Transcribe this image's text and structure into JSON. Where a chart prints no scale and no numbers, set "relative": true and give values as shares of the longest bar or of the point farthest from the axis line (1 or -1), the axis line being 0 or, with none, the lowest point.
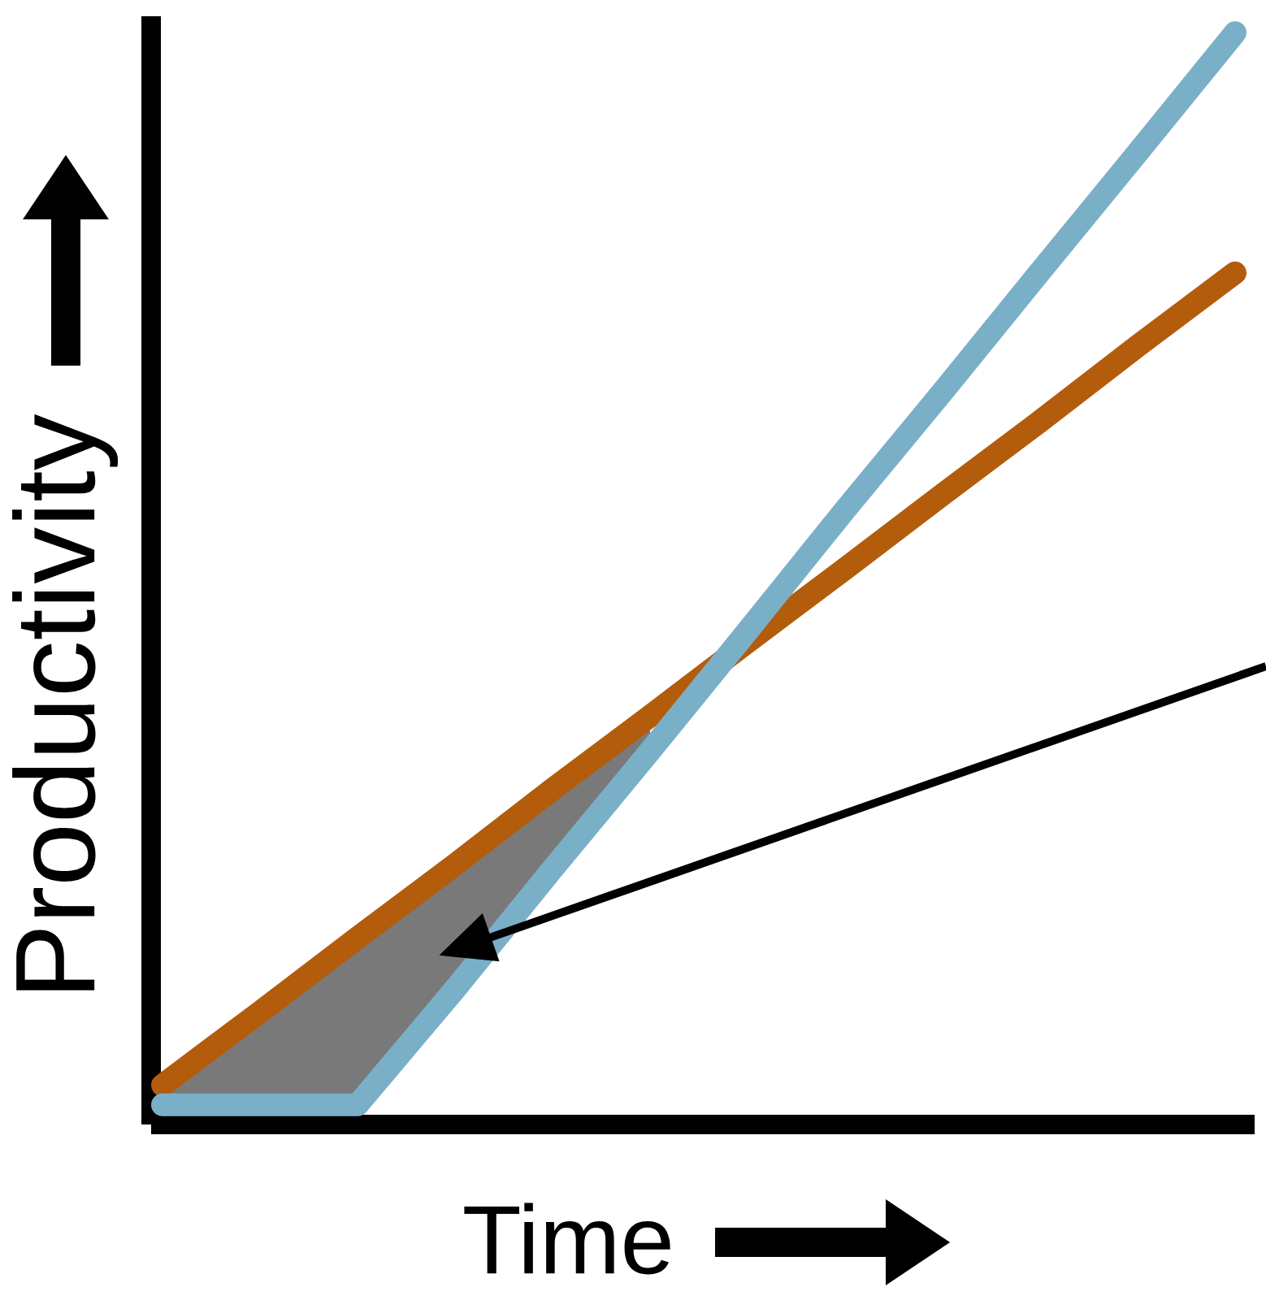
{
  "chart_data": {
    "type": "line",
    "relative": true,
    "xlabel": "Time",
    "ylabel": "Productivity",
    "categories": [
      null,
      null,
      null,
      null,
      null,
      null,
      null,
      null,
      null,
      null,
      null,
      null
    ],
    "series": [
      {
        "color": "#b35c0c",
        "values": [
          0.036,
          0.103,
          0.171,
          0.238,
          0.307,
          0.374,
          0.442,
          0.509,
          0.577,
          0.644,
          0.713,
          0.78
        ]
      },
      {
        "color": "#7aafc8",
        "values": [
          0.018,
          0.018,
          0.018,
          0.124,
          0.234,
          0.342,
          0.452,
          0.563,
          0.671,
          0.781,
          0.89,
          1.0
        ],
        "lower": [
          0.018,
          0.018,
          0.018,
          0.124,
          0.234,
          0.342,
          null,
          null,
          null,
          null,
          null,
          null
        ],
        "upper": [
          0.036,
          0.103,
          0.171,
          0.238,
          0.307,
          0.374,
          null,
          null,
          null,
          null,
          null,
          null
        ]
      }
    ]
  }
}
